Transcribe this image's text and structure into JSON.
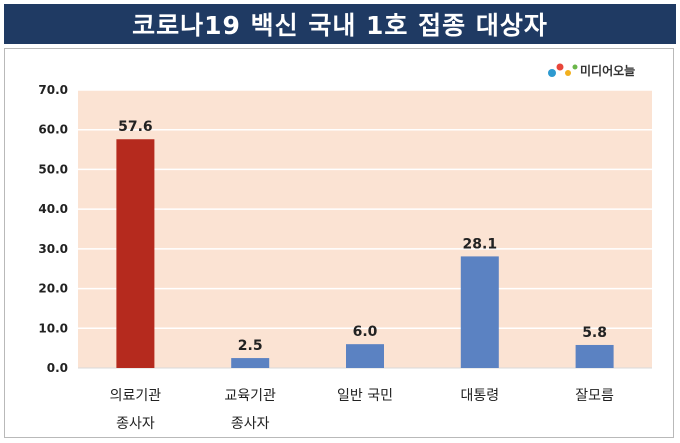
{
  "header": {
    "title": "코로나19 백신 국내 1호 접종 대상자"
  },
  "logo": {
    "text": "미디어오늘",
    "icon": "media-logo-icon"
  },
  "chart_data": {
    "type": "bar",
    "categories": [
      [
        "의료기관",
        "종사자"
      ],
      [
        "교육기관",
        "종사자"
      ],
      [
        "일반 국민"
      ],
      [
        "대통령"
      ],
      [
        "잘모름"
      ]
    ],
    "values": [
      57.6,
      2.5,
      6.0,
      28.1,
      5.8
    ],
    "value_labels": [
      "57.6",
      "2.5",
      "6.0",
      "28.1",
      "5.8"
    ],
    "ylim": [
      0,
      70
    ],
    "yticks": [
      "0.0",
      "10.0",
      "20.0",
      "30.0",
      "40.0",
      "50.0",
      "60.0",
      "70.0"
    ],
    "grid": true,
    "legend": "none",
    "colors": {
      "highlight": "#b52a1e",
      "default": "#5b82c2",
      "plot_bg": "#fbe3d3",
      "gridline": "#ffffff"
    },
    "highlight_index": 0
  }
}
